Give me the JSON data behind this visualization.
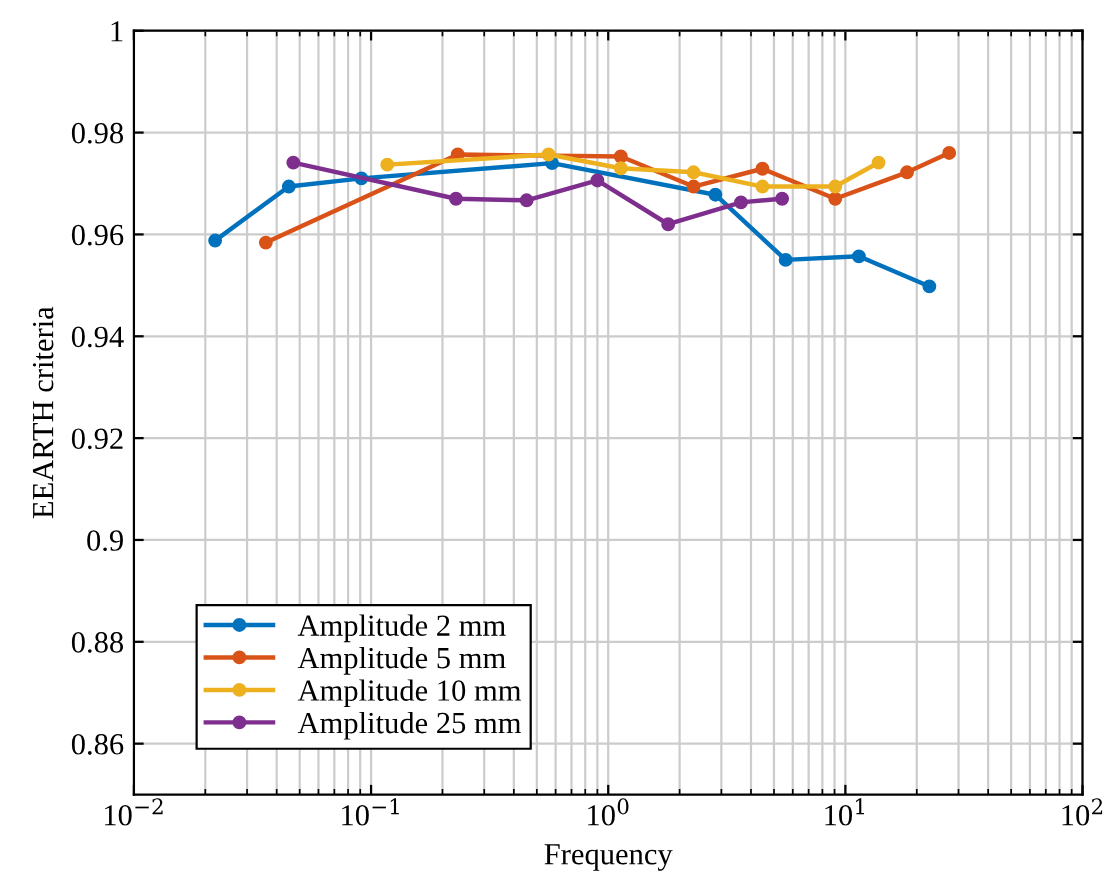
{
  "chart_data": {
    "type": "line",
    "xlabel": "Frequency",
    "ylabel": "EEARTH criteria",
    "log": "x",
    "xlim": [
      0.01,
      100
    ],
    "xticks": [
      {
        "value": 0.01,
        "label": "10$^{−2}$"
      },
      {
        "value": 0.1,
        "label": "10$^{−1}$"
      },
      {
        "value": 1,
        "label": "10$^{0}$"
      },
      {
        "value": 10,
        "label": "10$^{1}$"
      },
      {
        "value": 100,
        "label": "10$^{2}$"
      }
    ],
    "ylim": [
      0.85,
      1
    ],
    "yticks": [
      0.86,
      0.88,
      0.9,
      0.92,
      0.94,
      0.96,
      0.98,
      1
    ],
    "grid": true,
    "legend": "bottom left",
    "marker": "circle",
    "line_style": "solid",
    "series": [
      {
        "name": "Amplitude 2 mm",
        "color": "#0072bd",
        "x": [
          0.022,
          0.045,
          0.091,
          0.58,
          2.83,
          5.6,
          11.4,
          22.6
        ],
        "values": [
          0.9588,
          0.9694,
          0.971,
          0.974,
          0.9678,
          0.955,
          0.9557,
          0.9498
        ]
      },
      {
        "name": "Amplitude 5 mm",
        "color": "#d95319",
        "x": [
          0.036,
          0.232,
          1.13,
          2.29,
          4.47,
          9.06,
          18.2,
          27.4
        ],
        "values": [
          0.9584,
          0.9757,
          0.9753,
          0.9694,
          0.9729,
          0.967,
          0.9722,
          0.976
        ]
      },
      {
        "name": "Amplitude 10 mm",
        "color": "#edb120",
        "x": [
          0.117,
          0.56,
          1.13,
          2.29,
          4.47,
          9.06,
          13.8
        ],
        "values": [
          0.9737,
          0.9757,
          0.973,
          0.9722,
          0.9694,
          0.9694,
          0.9741
        ]
      },
      {
        "name": "Amplitude 25 mm",
        "color": "#7e2f8e",
        "x": [
          0.047,
          0.228,
          0.453,
          0.9,
          1.79,
          3.63,
          5.41
        ],
        "values": [
          0.9741,
          0.967,
          0.9667,
          0.9706,
          0.962,
          0.9663,
          0.967
        ]
      }
    ]
  }
}
